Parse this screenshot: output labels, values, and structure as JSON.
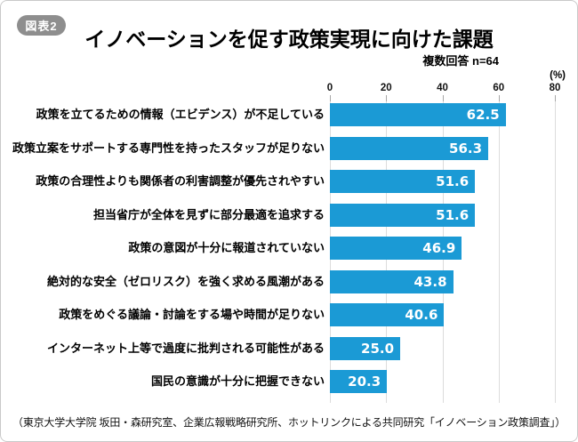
{
  "header": {
    "badge": "図表2",
    "title": "イノベーションを促す政策実現に向けた課題",
    "subtitle": "複数回答 n=64"
  },
  "axis": {
    "unit_label": "(%)"
  },
  "chart_data": {
    "type": "bar",
    "orientation": "horizontal",
    "title": "イノベーションを促す政策実現に向けた課題",
    "subtitle": "複数回答 n=64",
    "n": 64,
    "unit": "%",
    "categories": [
      "政策を立てるための情報（エビデンス）が不足している",
      "政策立案をサポートする専門性を持ったスタッフが足りない",
      "政策の合理性よりも関係者の利害調整が優先されやすい",
      "担当省庁が全体を見ずに部分最適を追求する",
      "政策の意図が十分に報道されていない",
      "絶対的な安全（ゼロリスク）を強く求める風潮がある",
      "政策をめぐる議論・討論をする場や時間が足りない",
      "インターネット上等で過度に批判される可能性がある",
      "国民の意識が十分に把握できない"
    ],
    "values": [
      62.5,
      56.3,
      51.6,
      51.6,
      46.9,
      43.8,
      40.6,
      25.0,
      20.3
    ],
    "xlim": [
      0,
      80
    ],
    "xticks": [
      0,
      20,
      40,
      60,
      80
    ],
    "xlabel": "",
    "ylabel": "",
    "grid": true,
    "legend": false,
    "bar_color": "#1b9ad5",
    "value_label_color": "#ffffff"
  },
  "footer": {
    "source": "（東京大学大学院 坂田・森研究室、企業広報戦略研究所、ホットリンクによる共同研究「イノベーション政策調査」）"
  }
}
